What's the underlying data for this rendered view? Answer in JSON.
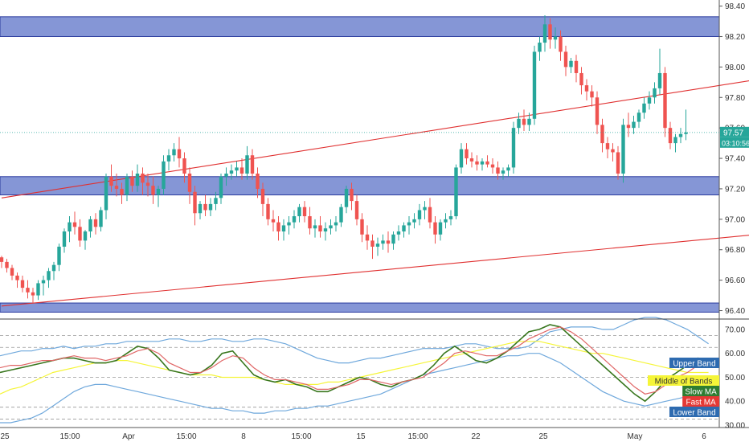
{
  "chart_data": [
    {
      "type": "candlestick",
      "title": "",
      "price_axis_ticks": [
        "98.40",
        "98.20",
        "98.00",
        "97.80",
        "97.60",
        "97.40",
        "97.20",
        "97.00",
        "96.80",
        "96.60",
        "96.40"
      ],
      "ylim": [
        96.35,
        98.44
      ],
      "x_tick_labels": [
        "25",
        "15:00",
        "Apr",
        "15:00",
        "8",
        "15:00",
        "15",
        "15:00",
        "22",
        "25",
        "May",
        "6"
      ],
      "last_price": "97.57",
      "countdown": "03:10:56",
      "zones": [
        {
          "name": "resistance",
          "from": 98.2,
          "to": 98.33
        },
        {
          "name": "middle",
          "from": 97.16,
          "to": 97.28
        },
        {
          "name": "support",
          "from": 96.39,
          "to": 96.45
        }
      ],
      "trendlines": [
        {
          "name": "upper-channel",
          "from": {
            "t": 0,
            "price": 97.14
          },
          "to": {
            "t": 240,
            "price": 98.43
          }
        },
        {
          "name": "lower-channel",
          "from": {
            "t": 0,
            "price": 96.43
          },
          "to": {
            "t": 240,
            "price": 97.21
          }
        }
      ],
      "candles": [
        [
          96.75,
          96.76,
          96.72,
          96.68
        ],
        [
          96.72,
          96.74,
          96.68,
          96.65
        ],
        [
          96.68,
          96.7,
          96.63,
          96.6
        ],
        [
          96.63,
          96.65,
          96.6,
          96.55
        ],
        [
          96.6,
          96.63,
          96.55,
          96.52
        ],
        [
          96.55,
          96.6,
          96.52,
          96.48
        ],
        [
          96.52,
          96.55,
          96.5,
          96.45
        ],
        [
          96.5,
          96.6,
          96.58,
          96.47
        ],
        [
          96.58,
          96.63,
          96.6,
          96.5
        ],
        [
          96.6,
          96.68,
          96.66,
          96.55
        ],
        [
          96.66,
          96.72,
          96.7,
          96.6
        ],
        [
          96.7,
          96.84,
          96.82,
          96.66
        ],
        [
          96.82,
          96.94,
          96.92,
          96.78
        ],
        [
          96.92,
          97.02,
          96.98,
          96.85
        ],
        [
          96.98,
          97.05,
          96.95,
          96.9
        ],
        [
          96.95,
          97.0,
          96.86,
          96.82
        ],
        [
          96.86,
          96.93,
          96.92,
          96.8
        ],
        [
          96.92,
          97.02,
          97.0,
          96.88
        ],
        [
          97.0,
          97.04,
          96.95,
          96.9
        ],
        [
          96.95,
          97.08,
          97.06,
          96.92
        ],
        [
          97.06,
          97.3,
          97.28,
          97.0
        ],
        [
          97.28,
          97.36,
          97.22,
          97.18
        ],
        [
          97.22,
          97.3,
          97.2,
          97.15
        ],
        [
          97.2,
          97.24,
          97.16,
          97.1
        ],
        [
          97.16,
          97.3,
          97.28,
          97.12
        ],
        [
          97.28,
          97.32,
          97.22,
          97.18
        ],
        [
          97.22,
          97.36,
          97.3,
          97.18
        ],
        [
          97.3,
          97.34,
          97.24,
          97.16
        ],
        [
          97.24,
          97.3,
          97.22,
          97.15
        ],
        [
          97.22,
          97.28,
          97.16,
          97.1
        ],
        [
          97.16,
          97.22,
          97.2,
          97.08
        ],
        [
          97.2,
          97.42,
          97.38,
          97.16
        ],
        [
          97.38,
          97.46,
          97.42,
          97.32
        ],
        [
          97.42,
          97.5,
          97.46,
          97.38
        ],
        [
          97.46,
          97.54,
          97.4,
          97.34
        ],
        [
          97.4,
          97.44,
          97.3,
          97.24
        ],
        [
          97.3,
          97.34,
          97.18,
          97.1
        ],
        [
          97.18,
          97.22,
          97.04,
          96.96
        ],
        [
          97.04,
          97.12,
          97.1,
          97.0
        ],
        [
          97.1,
          97.16,
          97.06,
          97.02
        ],
        [
          97.06,
          97.14,
          97.1,
          97.02
        ],
        [
          97.1,
          97.18,
          97.14,
          97.06
        ],
        [
          97.14,
          97.3,
          97.28,
          97.1
        ],
        [
          97.28,
          97.34,
          97.3,
          97.22
        ],
        [
          97.3,
          97.36,
          97.32,
          97.26
        ],
        [
          97.32,
          97.38,
          97.34,
          97.28
        ],
        [
          97.34,
          97.4,
          97.3,
          97.26
        ],
        [
          97.3,
          97.48,
          97.42,
          97.26
        ],
        [
          97.42,
          97.46,
          97.3,
          97.26
        ],
        [
          97.3,
          97.34,
          97.2,
          97.14
        ],
        [
          97.2,
          97.24,
          97.1,
          97.02
        ],
        [
          97.1,
          97.14,
          97.0,
          96.96
        ],
        [
          97.0,
          97.06,
          96.98,
          96.92
        ],
        [
          96.98,
          97.02,
          96.92,
          96.86
        ],
        [
          96.92,
          97.0,
          96.96,
          96.86
        ],
        [
          96.96,
          97.02,
          96.98,
          96.9
        ],
        [
          96.98,
          97.06,
          97.02,
          96.94
        ],
        [
          97.02,
          97.1,
          97.08,
          96.98
        ],
        [
          97.08,
          97.12,
          97.02,
          96.98
        ],
        [
          97.02,
          97.08,
          96.94,
          96.9
        ],
        [
          96.94,
          97.0,
          96.96,
          96.88
        ],
        [
          96.96,
          97.02,
          96.92,
          96.88
        ],
        [
          96.92,
          96.98,
          96.94,
          96.86
        ],
        [
          96.94,
          97.0,
          96.96,
          96.9
        ],
        [
          96.96,
          97.02,
          96.98,
          96.92
        ],
        [
          96.98,
          97.1,
          97.08,
          96.95
        ],
        [
          97.08,
          97.22,
          97.2,
          97.04
        ],
        [
          97.2,
          97.24,
          97.12,
          97.06
        ],
        [
          97.12,
          97.16,
          97.0,
          96.96
        ],
        [
          97.0,
          97.04,
          96.9,
          96.85
        ],
        [
          96.9,
          96.96,
          96.86,
          96.8
        ],
        [
          96.86,
          96.9,
          96.82,
          96.74
        ],
        [
          96.82,
          96.88,
          96.84,
          96.76
        ],
        [
          96.84,
          96.9,
          96.86,
          96.8
        ],
        [
          96.86,
          96.92,
          96.84,
          96.78
        ],
        [
          96.84,
          96.92,
          96.9,
          96.8
        ],
        [
          96.9,
          96.96,
          96.92,
          96.86
        ],
        [
          96.92,
          96.98,
          96.96,
          96.88
        ],
        [
          96.96,
          97.02,
          96.98,
          96.9
        ],
        [
          96.98,
          97.04,
          97.0,
          96.94
        ],
        [
          97.0,
          97.1,
          97.06,
          96.96
        ],
        [
          97.06,
          97.12,
          97.08,
          97.0
        ],
        [
          97.08,
          97.14,
          96.98,
          96.94
        ],
        [
          96.98,
          97.02,
          96.9,
          96.84
        ],
        [
          96.9,
          97.0,
          96.98,
          96.86
        ],
        [
          96.98,
          97.04,
          97.0,
          96.94
        ],
        [
          97.0,
          97.06,
          97.02,
          96.96
        ],
        [
          97.02,
          97.36,
          97.34,
          97.0
        ],
        [
          97.34,
          97.5,
          97.46,
          97.3
        ],
        [
          97.46,
          97.5,
          97.4,
          97.36
        ],
        [
          97.4,
          97.44,
          97.38,
          97.34
        ],
        [
          97.38,
          97.42,
          97.36,
          97.32
        ],
        [
          97.36,
          97.4,
          97.38,
          97.32
        ],
        [
          97.38,
          97.42,
          97.36,
          97.34
        ],
        [
          97.36,
          97.4,
          97.34,
          97.3
        ],
        [
          97.34,
          97.38,
          97.3,
          97.26
        ],
        [
          97.3,
          97.34,
          97.32,
          97.26
        ],
        [
          97.32,
          97.36,
          97.34,
          97.28
        ],
        [
          97.34,
          97.64,
          97.6,
          97.3
        ],
        [
          97.6,
          97.7,
          97.66,
          97.56
        ],
        [
          97.66,
          97.72,
          97.62,
          97.58
        ],
        [
          97.62,
          97.7,
          97.66,
          97.58
        ],
        [
          97.66,
          98.14,
          98.1,
          97.62
        ],
        [
          98.1,
          98.2,
          98.16,
          98.04
        ],
        [
          98.16,
          98.34,
          98.28,
          98.1
        ],
        [
          98.28,
          98.32,
          98.18,
          98.12
        ],
        [
          98.18,
          98.26,
          98.2,
          98.12
        ],
        [
          98.2,
          98.24,
          98.1,
          98.04
        ],
        [
          98.1,
          98.14,
          98.0,
          97.94
        ],
        [
          98.0,
          98.06,
          98.04,
          97.96
        ],
        [
          98.04,
          98.08,
          97.96,
          97.9
        ],
        [
          97.96,
          98.0,
          97.88,
          97.82
        ],
        [
          97.88,
          97.92,
          97.84,
          97.78
        ],
        [
          97.84,
          97.88,
          97.8,
          97.74
        ],
        [
          97.8,
          97.84,
          97.62,
          97.56
        ],
        [
          97.62,
          97.66,
          97.5,
          97.44
        ],
        [
          97.5,
          97.54,
          97.46,
          97.4
        ],
        [
          97.46,
          97.5,
          97.44,
          97.38
        ],
        [
          97.44,
          97.48,
          97.3,
          97.26
        ],
        [
          97.3,
          97.66,
          97.62,
          97.24
        ],
        [
          97.62,
          97.7,
          97.6,
          97.54
        ],
        [
          97.6,
          97.68,
          97.64,
          97.56
        ],
        [
          97.64,
          97.72,
          97.7,
          97.6
        ],
        [
          97.7,
          97.8,
          97.76,
          97.66
        ],
        [
          97.76,
          97.84,
          97.8,
          97.72
        ],
        [
          97.8,
          97.9,
          97.86,
          97.76
        ],
        [
          97.86,
          98.12,
          97.96,
          97.82
        ],
        [
          97.96,
          98.0,
          97.6,
          97.54
        ],
        [
          97.6,
          97.64,
          97.5,
          97.46
        ],
        [
          97.5,
          97.56,
          97.54,
          97.44
        ],
        [
          97.54,
          97.6,
          97.56,
          97.5
        ],
        [
          97.56,
          97.72,
          97.57,
          97.52
        ]
      ]
    },
    {
      "type": "line",
      "title": "",
      "y_tick_labels": [
        "70.00",
        "60.00",
        "50.00",
        "40.00",
        "30.00"
      ],
      "ylim": [
        29,
        74
      ],
      "series": [
        {
          "name": "Upper Band",
          "color": "#6fa8dc",
          "values": [
            59,
            60,
            61,
            61,
            62,
            62,
            63,
            62,
            63,
            63,
            64,
            64,
            65,
            65,
            65,
            65,
            66,
            66,
            65,
            65,
            66,
            66,
            65,
            65,
            66,
            66,
            65,
            64,
            62,
            60,
            58,
            57,
            56,
            56,
            57,
            58,
            58,
            59,
            60,
            61,
            62,
            62,
            62,
            63,
            64,
            64,
            63,
            62,
            62,
            62,
            63,
            66,
            69,
            70,
            71,
            71,
            71,
            70,
            70,
            72,
            74,
            75,
            75,
            74,
            72,
            70,
            67,
            64
          ]
        },
        {
          "name": "Middle of Bands",
          "color": "#f5f538",
          "values": [
            43,
            45,
            46,
            48,
            50,
            52,
            53,
            54,
            55,
            56,
            56,
            57,
            57,
            56,
            55,
            54,
            53,
            52,
            51,
            51,
            51,
            50,
            50,
            50,
            50,
            49,
            48,
            47,
            47,
            47,
            47,
            48,
            48,
            49,
            50,
            51,
            52,
            53,
            54,
            55,
            56,
            57,
            58,
            59,
            60,
            61,
            62,
            63,
            64,
            65,
            65,
            65,
            64,
            63,
            62,
            61,
            60,
            60,
            59,
            58,
            57,
            56,
            55,
            54,
            53,
            52,
            52,
            52
          ]
        },
        {
          "name": "Lower Band",
          "color": "#6fa8dc",
          "values": [
            31,
            31,
            32,
            33,
            35,
            38,
            41,
            44,
            46,
            47,
            47,
            46,
            45,
            44,
            43,
            42,
            41,
            40,
            39,
            38,
            37,
            37,
            36,
            36,
            35,
            35,
            36,
            36,
            37,
            37,
            38,
            38,
            39,
            40,
            41,
            42,
            43,
            45,
            47,
            49,
            51,
            52,
            53,
            54,
            55,
            56,
            57,
            58,
            59,
            59,
            60,
            60,
            58,
            56,
            53,
            50,
            47,
            44,
            42,
            40,
            39,
            38,
            39,
            40,
            41,
            42,
            43,
            44
          ]
        },
        {
          "name": "Slow MA",
          "color": "#38761d",
          "values": [
            52,
            53,
            54,
            55,
            56,
            57,
            58,
            58,
            57,
            56,
            56,
            57,
            60,
            63,
            62,
            58,
            53,
            52,
            51,
            52,
            55,
            60,
            61,
            56,
            51,
            49,
            48,
            49,
            47,
            46,
            44,
            44,
            46,
            48,
            50,
            49,
            47,
            46,
            48,
            49,
            51,
            55,
            60,
            63,
            60,
            57,
            56,
            58,
            61,
            65,
            69,
            70,
            72,
            71,
            67,
            63,
            59,
            55,
            51,
            47,
            43,
            40,
            44,
            49,
            52,
            55,
            58,
            57
          ]
        },
        {
          "name": "Fast MA",
          "color": "#e06666",
          "values": [
            54,
            55,
            55,
            56,
            57,
            57,
            58,
            59,
            58,
            58,
            57,
            58,
            59,
            61,
            62,
            60,
            56,
            54,
            52,
            52,
            54,
            57,
            59,
            58,
            54,
            51,
            49,
            49,
            48,
            47,
            45,
            45,
            46,
            47,
            49,
            49,
            48,
            47,
            48,
            49,
            50,
            53,
            56,
            60,
            61,
            60,
            59,
            59,
            61,
            63,
            66,
            68,
            70,
            71,
            69,
            66,
            62,
            58,
            54,
            50,
            46,
            43,
            44,
            47,
            50,
            52,
            55,
            56
          ]
        }
      ],
      "legend": [
        "Upper Band",
        "Middle of Bands",
        "Slow MA",
        "Fast MA",
        "Lower Band"
      ]
    }
  ]
}
